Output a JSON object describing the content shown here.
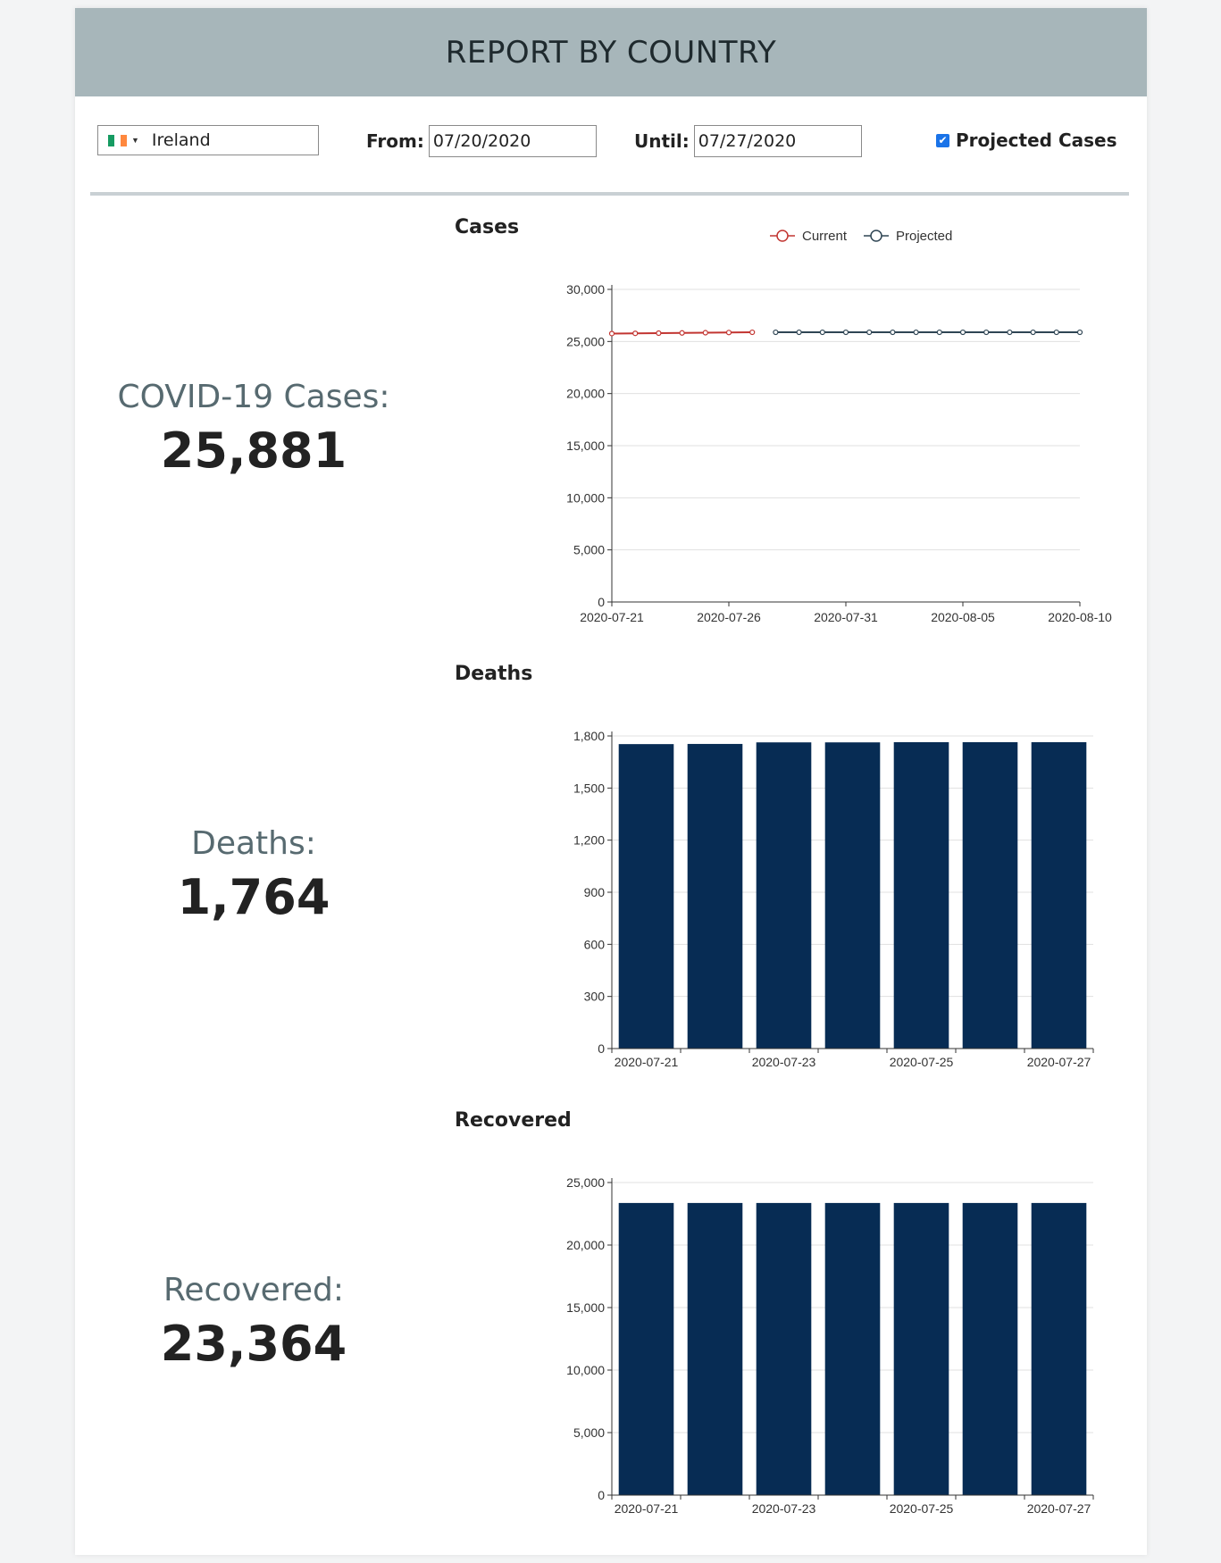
{
  "header": {
    "title": "REPORT BY COUNTRY"
  },
  "controls": {
    "country": "Ireland",
    "from_label": "From:",
    "from_value": "07/20/2020",
    "until_label": "Until:",
    "until_value": "07/27/2020",
    "projected_label": "Projected Cases",
    "projected_checked": true,
    "flag_colors": [
      "#169b62",
      "#ffffff",
      "#ff883e"
    ]
  },
  "stats": {
    "cases": {
      "label": "COVID-19 Cases:",
      "value": "25,881"
    },
    "deaths": {
      "label": "Deaths:",
      "value": "1,764"
    },
    "recovered": {
      "label": "Recovered:",
      "value": "23,364"
    }
  },
  "charts": {
    "cases_title": "Cases",
    "deaths_title": "Deaths",
    "recovered_title": "Recovered"
  },
  "chart_data": [
    {
      "type": "line",
      "title": "Cases",
      "ylim": [
        0,
        30000
      ],
      "yticks": [
        0,
        5000,
        10000,
        15000,
        20000,
        25000,
        30000
      ],
      "xlim": [
        "2020-07-21",
        "2020-08-10"
      ],
      "xticks": [
        "2020-07-21",
        "2020-07-26",
        "2020-07-31",
        "2020-08-05",
        "2020-08-10"
      ],
      "grid": true,
      "legend": "top",
      "series": [
        {
          "name": "Current",
          "color": "#c23531",
          "x": [
            "2020-07-21",
            "2020-07-22",
            "2020-07-23",
            "2020-07-24",
            "2020-07-25",
            "2020-07-26",
            "2020-07-27"
          ],
          "values": [
            25760,
            25780,
            25800,
            25820,
            25840,
            25860,
            25881
          ]
        },
        {
          "name": "Projected",
          "color": "#2f4554",
          "x": [
            "2020-07-28",
            "2020-07-29",
            "2020-07-30",
            "2020-07-31",
            "2020-08-01",
            "2020-08-02",
            "2020-08-03",
            "2020-08-04",
            "2020-08-05",
            "2020-08-06",
            "2020-08-07",
            "2020-08-08",
            "2020-08-09",
            "2020-08-10"
          ],
          "values": [
            25881,
            25881,
            25881,
            25881,
            25881,
            25881,
            25881,
            25881,
            25881,
            25881,
            25881,
            25881,
            25881,
            25881
          ]
        }
      ]
    },
    {
      "type": "bar",
      "title": "Deaths",
      "categories": [
        "2020-07-21",
        "2020-07-22",
        "2020-07-23",
        "2020-07-24",
        "2020-07-25",
        "2020-07-26",
        "2020-07-27"
      ],
      "xtick_labels": [
        "2020-07-21",
        "",
        "2020-07-23",
        "",
        "2020-07-25",
        "",
        "2020-07-27"
      ],
      "values": [
        1753,
        1754,
        1763,
        1763,
        1764,
        1764,
        1764
      ],
      "ylim": [
        0,
        1800
      ],
      "yticks": [
        0,
        300,
        600,
        900,
        1200,
        1500,
        1800
      ],
      "color": "#072c54",
      "grid": true
    },
    {
      "type": "bar",
      "title": "Recovered",
      "categories": [
        "2020-07-21",
        "2020-07-22",
        "2020-07-23",
        "2020-07-24",
        "2020-07-25",
        "2020-07-26",
        "2020-07-27"
      ],
      "xtick_labels": [
        "2020-07-21",
        "",
        "2020-07-23",
        "",
        "2020-07-25",
        "",
        "2020-07-27"
      ],
      "values": [
        23364,
        23364,
        23364,
        23364,
        23364,
        23364,
        23364
      ],
      "ylim": [
        0,
        25000
      ],
      "yticks": [
        0,
        5000,
        10000,
        15000,
        20000,
        25000
      ],
      "color": "#072c54",
      "grid": true
    }
  ]
}
